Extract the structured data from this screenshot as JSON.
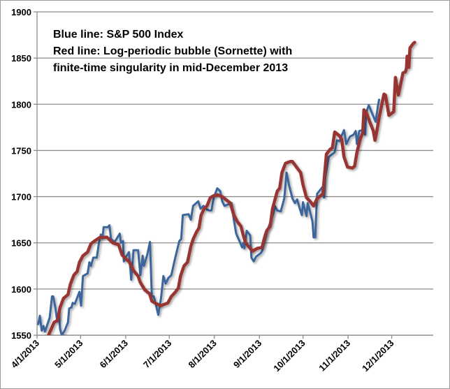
{
  "chart_data": {
    "type": "line",
    "title": "",
    "annotation_lines": [
      "Blue line: S&P 500 Index",
      "Red line: Log-periodic bubble (Sornette) with",
      "finite-time singularity in mid-December 2013"
    ],
    "xlabel": "",
    "ylabel": "",
    "x_unit": "days since 4/1/2013",
    "ylim": [
      1550,
      1900
    ],
    "yticks": [
      1550,
      1600,
      1650,
      1700,
      1750,
      1800,
      1850,
      1900
    ],
    "xticks": [
      {
        "label": "4/1/2013",
        "day": 0
      },
      {
        "label": "5/1/2013",
        "day": 30
      },
      {
        "label": "6/1/2013",
        "day": 61
      },
      {
        "label": "7/1/2013",
        "day": 91
      },
      {
        "label": "8/1/2013",
        "day": 122
      },
      {
        "label": "9/1/2013",
        "day": 153
      },
      {
        "label": "10/1/2013",
        "day": 183
      },
      {
        "label": "11/1/2013",
        "day": 214
      },
      {
        "label": "12/1/2013",
        "day": 244
      }
    ],
    "xlim": [
      0,
      273
    ],
    "grid": "horizontal",
    "series": [
      {
        "name": "S&P 500 Index",
        "color": "#3a659b",
        "points": [
          [
            0.8,
            1562
          ],
          [
            1.9,
            1571
          ],
          [
            3.2,
            1555
          ],
          [
            4.4,
            1560
          ],
          [
            5.5,
            1554
          ],
          [
            8.7,
            1569
          ],
          [
            10.3,
            1592
          ],
          [
            11.1,
            1592
          ],
          [
            12.6,
            1580
          ],
          [
            13.9,
            1565
          ],
          [
            15,
            1575
          ],
          [
            15.8,
            1557
          ],
          [
            17,
            1550
          ],
          [
            19,
            1555
          ],
          [
            21.3,
            1564
          ],
          [
            22.1,
            1579
          ],
          [
            23.7,
            1580
          ],
          [
            24.5,
            1585
          ],
          [
            26,
            1584
          ],
          [
            29.2,
            1597
          ],
          [
            30.3,
            1582
          ],
          [
            31.6,
            1614
          ],
          [
            34.8,
            1617
          ],
          [
            36,
            1629
          ],
          [
            37.1,
            1625
          ],
          [
            38.7,
            1634
          ],
          [
            41.1,
            1634
          ],
          [
            42.6,
            1650
          ],
          [
            43.9,
            1659
          ],
          [
            45,
            1655
          ],
          [
            45.8,
            1667
          ],
          [
            48.7,
            1667
          ],
          [
            49.8,
            1669
          ],
          [
            50.9,
            1654
          ],
          [
            53.4,
            1651
          ],
          [
            56.9,
            1660
          ],
          [
            57.7,
            1650
          ],
          [
            59.2,
            1652
          ],
          [
            59.7,
            1630
          ],
          [
            61.3,
            1635
          ],
          [
            63.2,
            1640
          ],
          [
            64.8,
            1610
          ],
          [
            66.4,
            1642
          ],
          [
            69.5,
            1642
          ],
          [
            71.1,
            1615
          ],
          [
            72.7,
            1636
          ],
          [
            73.5,
            1625
          ],
          [
            75.8,
            1637
          ],
          [
            77.7,
            1651
          ],
          [
            79,
            1592
          ],
          [
            80.3,
            1592
          ],
          [
            81.5,
            1585
          ],
          [
            83.4,
            1572
          ],
          [
            85.3,
            1590
          ],
          [
            86.9,
            1614
          ],
          [
            88.5,
            1606
          ],
          [
            90.4,
            1612
          ],
          [
            92.4,
            1615
          ],
          [
            94.8,
            1632
          ],
          [
            97.9,
            1652
          ],
          [
            99.2,
            1654
          ],
          [
            100.3,
            1680
          ],
          [
            104.3,
            1681
          ],
          [
            105.8,
            1675
          ],
          [
            107.4,
            1690
          ],
          [
            110.9,
            1695
          ],
          [
            112.5,
            1687
          ],
          [
            114.5,
            1690
          ],
          [
            116.9,
            1686
          ],
          [
            118.5,
            1685
          ],
          [
            120,
            1685
          ],
          [
            121.6,
            1699
          ],
          [
            124,
            1709
          ],
          [
            126,
            1706
          ],
          [
            127.4,
            1695
          ],
          [
            129,
            1690
          ],
          [
            133.8,
            1693
          ],
          [
            135.4,
            1675
          ],
          [
            137,
            1660
          ],
          [
            139.5,
            1651
          ],
          [
            141.1,
            1645
          ],
          [
            141.9,
            1650
          ],
          [
            142.7,
            1644
          ],
          [
            144.3,
            1663
          ],
          [
            146.7,
            1658
          ],
          [
            147.5,
            1634
          ],
          [
            149.1,
            1630
          ],
          [
            150.7,
            1635
          ],
          [
            154,
            1639
          ],
          [
            154.8,
            1641
          ],
          [
            157.2,
            1655
          ],
          [
            158.8,
            1665
          ],
          [
            161.2,
            1675
          ],
          [
            162.8,
            1683
          ],
          [
            163.6,
            1690
          ],
          [
            165.3,
            1685
          ],
          [
            167.7,
            1684
          ],
          [
            170.1,
            1698
          ],
          [
            171.7,
            1726
          ],
          [
            173.3,
            1713
          ],
          [
            175.7,
            1698
          ],
          [
            177.4,
            1693
          ],
          [
            179,
            1697
          ],
          [
            180.6,
            1688
          ],
          [
            182.2,
            1680
          ],
          [
            183,
            1694
          ],
          [
            185.4,
            1679
          ],
          [
            186.2,
            1693
          ],
          [
            187.8,
            1684
          ],
          [
            189.5,
            1673
          ],
          [
            190.3,
            1656
          ],
          [
            191.4,
            1656
          ],
          [
            192.7,
            1703
          ],
          [
            196.7,
            1711
          ],
          [
            197.5,
            1699
          ],
          [
            198.3,
            1721
          ],
          [
            200.7,
            1743
          ],
          [
            203.2,
            1746
          ],
          [
            204.8,
            1748
          ],
          [
            206.4,
            1761
          ],
          [
            208,
            1760
          ],
          [
            211.2,
            1772
          ],
          [
            212.8,
            1757
          ],
          [
            215.3,
            1765
          ],
          [
            217.7,
            1767
          ],
          [
            219.3,
            1771
          ],
          [
            220.1,
            1757
          ],
          [
            221.7,
            1771
          ],
          [
            224.1,
            1772
          ],
          [
            225.7,
            1767
          ],
          [
            226.5,
            1791
          ],
          [
            228.2,
            1799
          ],
          [
            230.6,
            1790
          ],
          [
            233,
            1781
          ],
          [
            234.6,
            1799
          ],
          [
            235.4,
            1805
          ]
        ]
      },
      {
        "name": "Log-periodic bubble (Sornette)",
        "color": "#983531",
        "points": [
          [
            7.9,
            1550
          ],
          [
            9.5,
            1556
          ],
          [
            11.8,
            1564
          ],
          [
            14.2,
            1566
          ],
          [
            15.8,
            1580
          ],
          [
            18.2,
            1590
          ],
          [
            21.3,
            1594
          ],
          [
            22.9,
            1605
          ],
          [
            25.3,
            1615
          ],
          [
            27.6,
            1619
          ],
          [
            29.2,
            1629
          ],
          [
            31.6,
            1636
          ],
          [
            34.8,
            1640
          ],
          [
            37.1,
            1649
          ],
          [
            39.5,
            1652
          ],
          [
            43.4,
            1656
          ],
          [
            48.2,
            1656
          ],
          [
            52.1,
            1650
          ],
          [
            56.1,
            1648
          ],
          [
            58.5,
            1637
          ],
          [
            61.6,
            1632
          ],
          [
            63.2,
            1630
          ],
          [
            66.4,
            1620
          ],
          [
            69.5,
            1614
          ],
          [
            71.1,
            1607
          ],
          [
            74.2,
            1599
          ],
          [
            77.4,
            1595
          ],
          [
            79,
            1587
          ],
          [
            82.1,
            1584
          ],
          [
            85.3,
            1582
          ],
          [
            90,
            1585
          ],
          [
            92.4,
            1592
          ],
          [
            94.8,
            1596
          ],
          [
            97.2,
            1601
          ],
          [
            98.7,
            1614
          ],
          [
            101.1,
            1625
          ],
          [
            103.5,
            1629
          ],
          [
            105.8,
            1646
          ],
          [
            107.4,
            1654
          ],
          [
            109.8,
            1662
          ],
          [
            111.4,
            1666
          ],
          [
            112.9,
            1680
          ],
          [
            115,
            1687
          ],
          [
            116.9,
            1690
          ],
          [
            119.3,
            1699
          ],
          [
            121.6,
            1701
          ],
          [
            124,
            1702
          ],
          [
            127.4,
            1700
          ],
          [
            133,
            1693
          ],
          [
            135.4,
            1680
          ],
          [
            137.8,
            1673
          ],
          [
            140.3,
            1668
          ],
          [
            141.9,
            1658
          ],
          [
            143.5,
            1650
          ],
          [
            146.7,
            1644
          ],
          [
            148.3,
            1641
          ],
          [
            151.5,
            1644
          ],
          [
            154.8,
            1645
          ],
          [
            156.4,
            1655
          ],
          [
            158,
            1663
          ],
          [
            160.4,
            1668
          ],
          [
            162,
            1687
          ],
          [
            165.3,
            1706
          ],
          [
            166.9,
            1709
          ],
          [
            168.5,
            1726
          ],
          [
            170.9,
            1736
          ],
          [
            174.1,
            1738
          ],
          [
            175.7,
            1738
          ],
          [
            179,
            1731
          ],
          [
            181.4,
            1726
          ],
          [
            183,
            1713
          ],
          [
            185.4,
            1699
          ],
          [
            187.8,
            1695
          ],
          [
            190.3,
            1690
          ],
          [
            192.7,
            1698
          ],
          [
            196.7,
            1703
          ],
          [
            199.1,
            1746
          ],
          [
            201.5,
            1751
          ],
          [
            203.2,
            1753
          ],
          [
            204.8,
            1770
          ],
          [
            208,
            1766
          ],
          [
            209.6,
            1762
          ],
          [
            211.2,
            1743
          ],
          [
            213.6,
            1732
          ],
          [
            216.9,
            1731
          ],
          [
            218.5,
            1733
          ],
          [
            220.1,
            1748
          ],
          [
            222.5,
            1763
          ],
          [
            224.1,
            1769
          ],
          [
            224.9,
            1794
          ],
          [
            226.5,
            1791
          ],
          [
            228.9,
            1781
          ],
          [
            231.4,
            1771
          ],
          [
            232.5,
            1761
          ],
          [
            233.8,
            1771
          ],
          [
            235.4,
            1786
          ],
          [
            238.7,
            1811
          ],
          [
            239.7,
            1810
          ],
          [
            242.1,
            1788
          ],
          [
            245.4,
            1792
          ],
          [
            246.6,
            1829
          ],
          [
            248.6,
            1810
          ],
          [
            251.8,
            1834
          ],
          [
            253.4,
            1835
          ],
          [
            254.2,
            1839
          ],
          [
            254.6,
            1852
          ],
          [
            255.8,
            1840
          ],
          [
            256.6,
            1861
          ],
          [
            259,
            1866
          ],
          [
            259.8,
            1867
          ]
        ]
      }
    ]
  }
}
